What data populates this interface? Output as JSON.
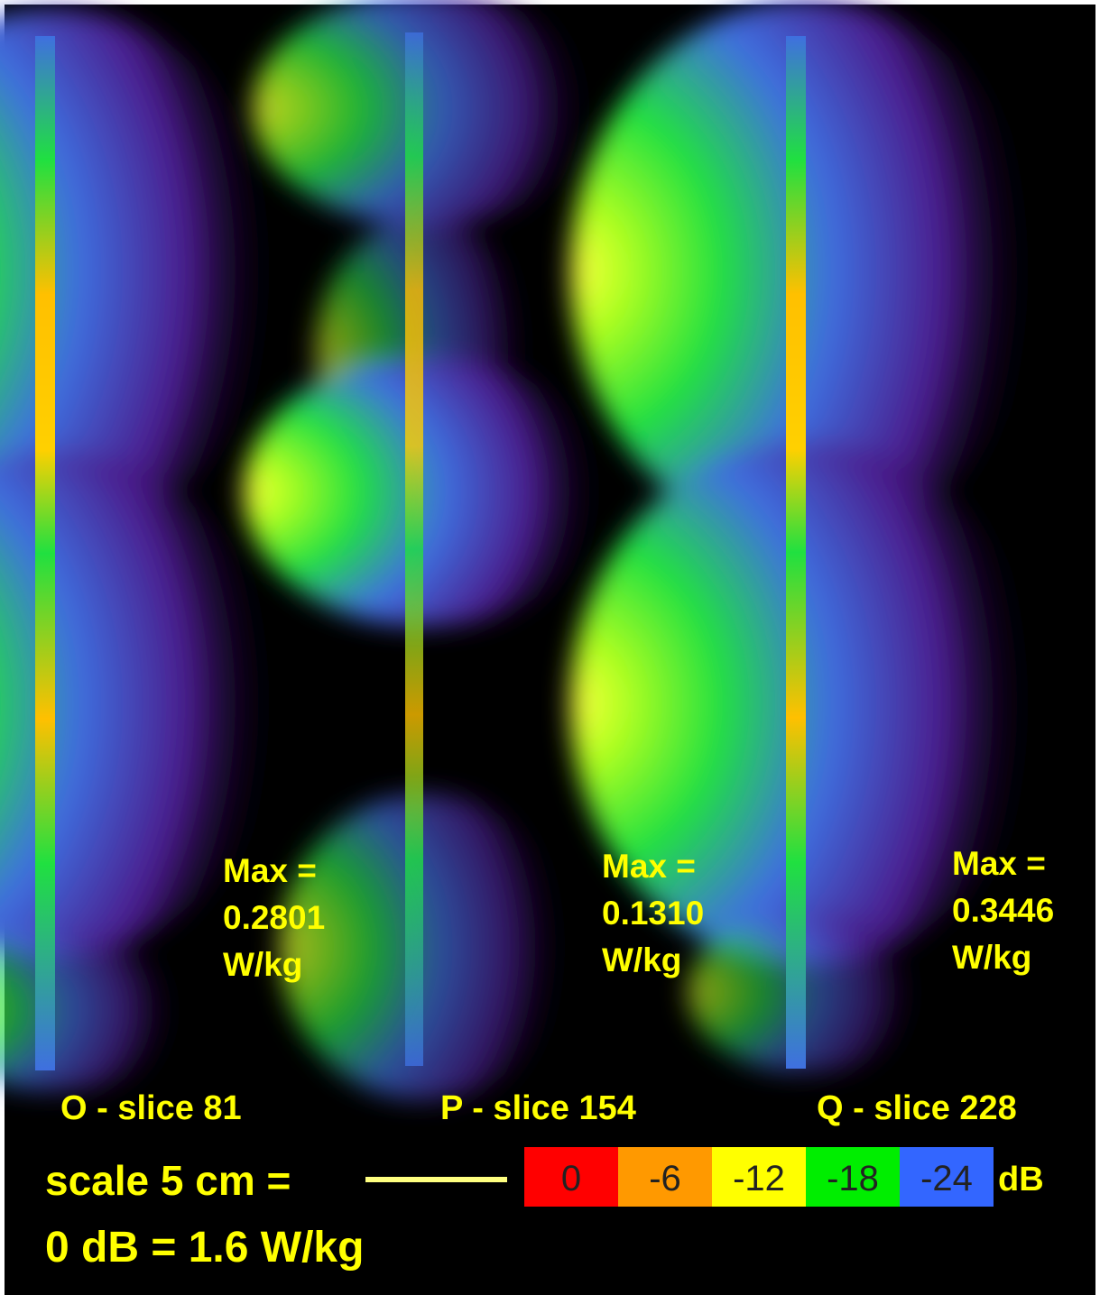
{
  "panels": [
    {
      "max_label": "Max =",
      "max_value": "0.2801",
      "max_unit": "W/kg",
      "caption": "O - slice 81"
    },
    {
      "max_label": "Max =",
      "max_value": "0.1310",
      "max_unit": "W/kg",
      "caption": "P - slice 154"
    },
    {
      "max_label": "Max =",
      "max_value": "0.3446",
      "max_unit": "W/kg",
      "caption": "Q - slice 228"
    }
  ],
  "scale": {
    "label": "scale 5 cm =",
    "reference": "0 dB = 1.6 W/kg"
  },
  "legend": {
    "unit": "dB",
    "entries": [
      {
        "label": "0",
        "color": "#ff0000"
      },
      {
        "label": "-6",
        "color": "#ff9900"
      },
      {
        "label": "-12",
        "color": "#ffff00"
      },
      {
        "label": "-18",
        "color": "#00ee00"
      },
      {
        "label": "-24",
        "color": "#3366ff"
      }
    ]
  }
}
